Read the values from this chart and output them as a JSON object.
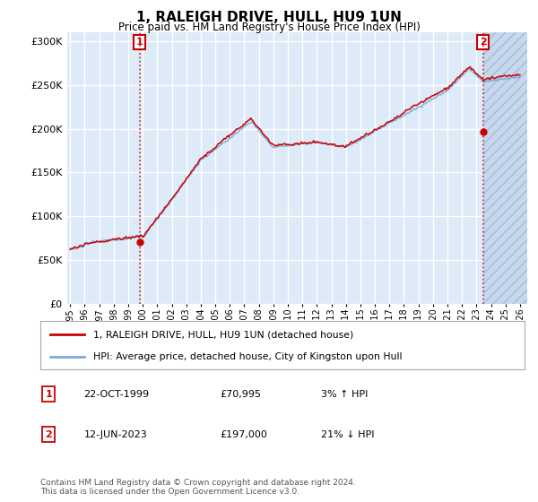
{
  "title": "1, RALEIGH DRIVE, HULL, HU9 1UN",
  "subtitle": "Price paid vs. HM Land Registry's House Price Index (HPI)",
  "legend_line1": "1, RALEIGH DRIVE, HULL, HU9 1UN (detached house)",
  "legend_line2": "HPI: Average price, detached house, City of Kingston upon Hull",
  "annotation1_label": "1",
  "annotation1_date": "22-OCT-1999",
  "annotation1_price": "£70,995",
  "annotation1_hpi": "3% ↑ HPI",
  "annotation2_label": "2",
  "annotation2_date": "12-JUN-2023",
  "annotation2_price": "£197,000",
  "annotation2_hpi": "21% ↓ HPI",
  "footer": "Contains HM Land Registry data © Crown copyright and database right 2024.\nThis data is licensed under the Open Government Licence v3.0.",
  "ylim": [
    0,
    310000
  ],
  "yticks": [
    0,
    50000,
    100000,
    150000,
    200000,
    250000,
    300000
  ],
  "background_color": "#ddeaf7",
  "hatch_color": "#c5d8ef",
  "red_color": "#cc0000",
  "blue_color": "#7aaadd",
  "grid_color": "#ffffff",
  "x_start_year": 1995,
  "x_end_year": 2026,
  "sale1_year": 1999.79,
  "sale1_price": 70995,
  "sale2_year": 2023.45,
  "sale2_price": 197000,
  "hpi_seed": 12345,
  "prop_seed": 99
}
